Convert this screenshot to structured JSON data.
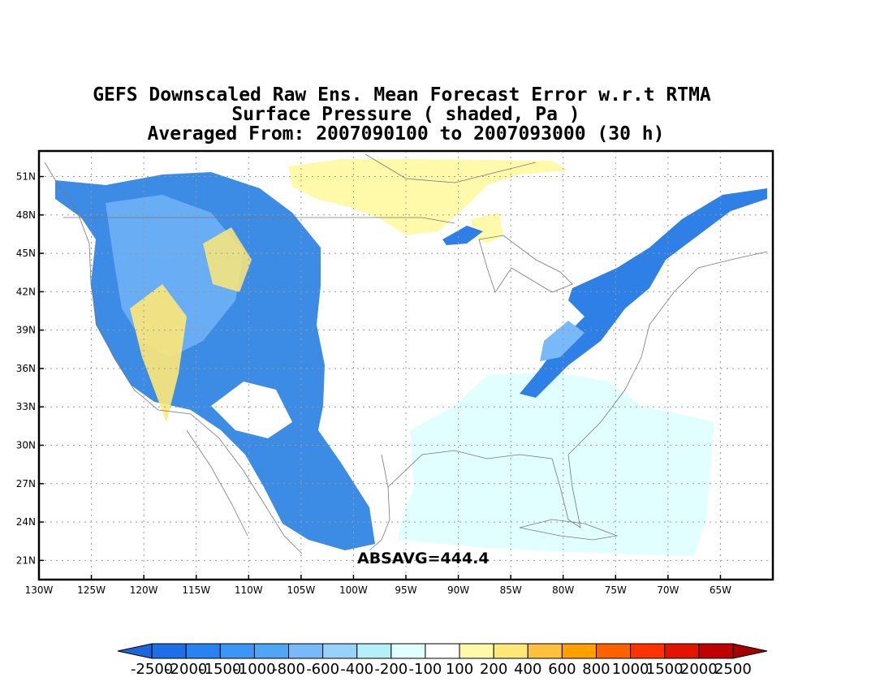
{
  "title": {
    "line1": "GEFS Downscaled Raw Ens. Mean Forecast Error w.r.t RTMA",
    "line2": "Surface Pressure ( shaded, Pa )",
    "line3": "Averaged From: 2007090100 to 2007093000 (30 h)"
  },
  "annotation": "ABSAVG=444.4",
  "map": {
    "lon_range": [
      -130,
      -60
    ],
    "lat_range": [
      19.5,
      53
    ],
    "lon_ticks": [
      {
        "value": -130,
        "label": "130W"
      },
      {
        "value": -125,
        "label": "125W"
      },
      {
        "value": -120,
        "label": "120W"
      },
      {
        "value": -115,
        "label": "115W"
      },
      {
        "value": -110,
        "label": "110W"
      },
      {
        "value": -105,
        "label": "105W"
      },
      {
        "value": -100,
        "label": "100W"
      },
      {
        "value": -95,
        "label": "95W"
      },
      {
        "value": -90,
        "label": "90W"
      },
      {
        "value": -85,
        "label": "85W"
      },
      {
        "value": -80,
        "label": "80W"
      },
      {
        "value": -75,
        "label": "75W"
      },
      {
        "value": -70,
        "label": "70W"
      },
      {
        "value": -65,
        "label": "65W"
      }
    ],
    "lat_ticks": [
      {
        "value": 51,
        "label": "51N"
      },
      {
        "value": 48,
        "label": "48N"
      },
      {
        "value": 45,
        "label": "45N"
      },
      {
        "value": 42,
        "label": "42N"
      },
      {
        "value": 39,
        "label": "39N"
      },
      {
        "value": 36,
        "label": "36N"
      },
      {
        "value": 33,
        "label": "33N"
      },
      {
        "value": 30,
        "label": "30N"
      },
      {
        "value": 27,
        "label": "27N"
      },
      {
        "value": 24,
        "label": "24N"
      },
      {
        "value": 21,
        "label": "21N"
      }
    ],
    "grid": true
  },
  "colorbar": {
    "labels": [
      "-2500",
      "-2000",
      "-1500",
      "-1000",
      "-800",
      "-600",
      "-400",
      "-200",
      "-100",
      "100",
      "200",
      "400",
      "600",
      "800",
      "1000",
      "1500",
      "2000",
      "2500"
    ],
    "colors": [
      "#1e64dc",
      "#1e6ee6",
      "#2882f0",
      "#3c96f5",
      "#50a5f5",
      "#78b9fa",
      "#96d2fa",
      "#b4f0fa",
      "#e1ffff",
      "#ffffff",
      "#fffaaa",
      "#ffe878",
      "#ffc03c",
      "#ffa000",
      "#ff6000",
      "#ff3200",
      "#e11400",
      "#c00000",
      "#a50000"
    ]
  }
}
